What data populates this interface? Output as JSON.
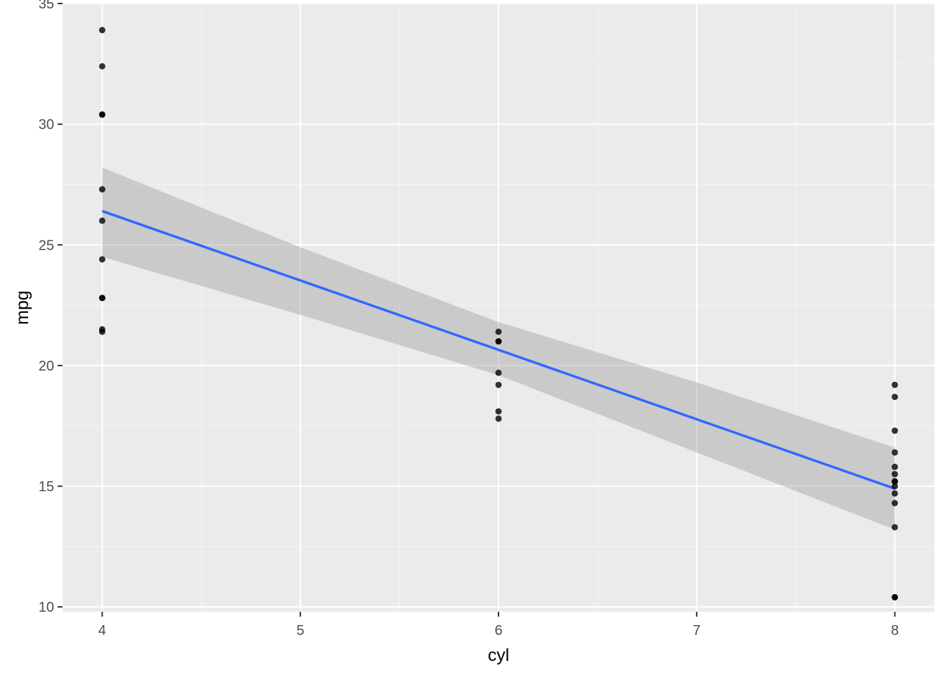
{
  "chart_data": {
    "type": "scatter",
    "title": "",
    "xlabel": "cyl",
    "ylabel": "mpg",
    "xlim": [
      3.8,
      8.2
    ],
    "ylim": [
      9.8,
      35.0
    ],
    "x_ticks": [
      4,
      5,
      6,
      7,
      8
    ],
    "y_ticks": [
      10,
      15,
      20,
      25,
      30,
      35
    ],
    "grid": true,
    "legend": "none",
    "colors": {
      "panel_background": "#ebebeb",
      "grid_major": "#ffffff",
      "grid_minor": "#f5f5f5",
      "points": "#000000",
      "fit_line": "#3366ff",
      "confidence_band": "#bdbdbd"
    },
    "series": [
      {
        "type": "scatter",
        "points": [
          {
            "x": 4,
            "y": 33.9
          },
          {
            "x": 4,
            "y": 32.4
          },
          {
            "x": 4,
            "y": 30.4
          },
          {
            "x": 4,
            "y": 30.4
          },
          {
            "x": 4,
            "y": 27.3
          },
          {
            "x": 4,
            "y": 26.0
          },
          {
            "x": 4,
            "y": 24.4
          },
          {
            "x": 4,
            "y": 22.8
          },
          {
            "x": 4,
            "y": 22.8
          },
          {
            "x": 4,
            "y": 21.5
          },
          {
            "x": 4,
            "y": 21.4
          },
          {
            "x": 6,
            "y": 21.4
          },
          {
            "x": 6,
            "y": 21.0
          },
          {
            "x": 6,
            "y": 21.0
          },
          {
            "x": 6,
            "y": 19.7
          },
          {
            "x": 6,
            "y": 19.2
          },
          {
            "x": 6,
            "y": 18.1
          },
          {
            "x": 6,
            "y": 17.8
          },
          {
            "x": 8,
            "y": 19.2
          },
          {
            "x": 8,
            "y": 18.7
          },
          {
            "x": 8,
            "y": 17.3
          },
          {
            "x": 8,
            "y": 16.4
          },
          {
            "x": 8,
            "y": 15.8
          },
          {
            "x": 8,
            "y": 15.5
          },
          {
            "x": 8,
            "y": 15.2
          },
          {
            "x": 8,
            "y": 15.2
          },
          {
            "x": 8,
            "y": 15.0
          },
          {
            "x": 8,
            "y": 14.7
          },
          {
            "x": 8,
            "y": 14.3
          },
          {
            "x": 8,
            "y": 13.3
          },
          {
            "x": 8,
            "y": 10.4
          },
          {
            "x": 8,
            "y": 10.4
          }
        ]
      },
      {
        "type": "line",
        "method": "lm",
        "points": [
          {
            "x": 4,
            "y": 26.4
          },
          {
            "x": 8,
            "y": 14.9
          }
        ]
      },
      {
        "type": "area",
        "band": "confidence interval",
        "x": [
          4,
          5,
          6,
          7,
          8
        ],
        "upper": [
          28.2,
          24.9,
          21.8,
          19.3,
          16.6
        ],
        "lower": [
          24.5,
          22.1,
          19.6,
          16.4,
          13.2
        ]
      }
    ]
  }
}
